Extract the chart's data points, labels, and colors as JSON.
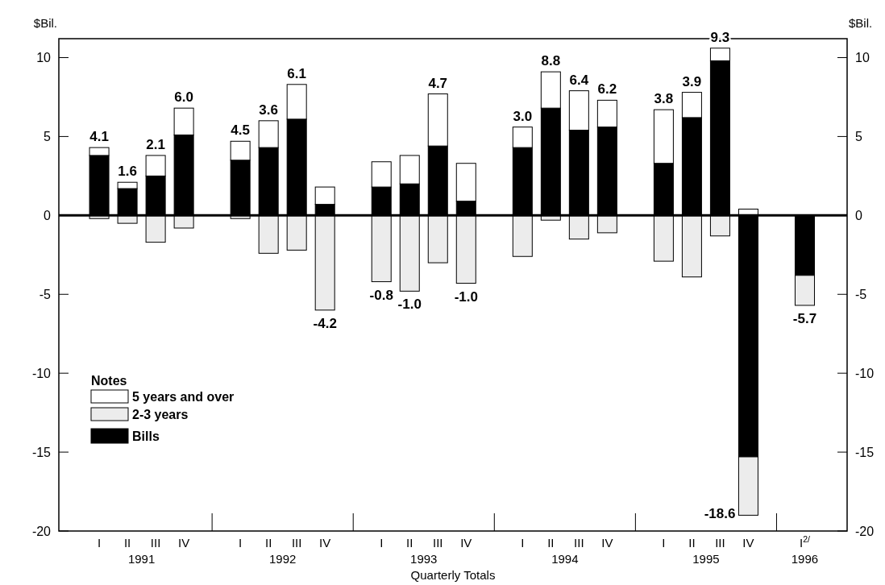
{
  "chart_data": {
    "type": "bar",
    "stacked": true,
    "xlabel": "Quarterly Totals",
    "ylabel": "$Bil.",
    "y2label": "$Bil.",
    "legend_title": "Notes",
    "legend": "bottom left",
    "categories": [
      "I",
      "II",
      "III",
      "IV",
      "I",
      "II",
      "III",
      "IV",
      "I",
      "II",
      "III",
      "IV",
      "I",
      "II",
      "III",
      "IV",
      "I",
      "II",
      "III",
      "IV",
      "I$^{2/}$"
    ],
    "series": [
      {
        "name": "Bills",
        "color": "#000000",
        "values": [
          3.8,
          1.7,
          2.5,
          5.1,
          3.5,
          4.3,
          6.1,
          0.7,
          1.8,
          2.0,
          4.4,
          0.9,
          4.3,
          6.8,
          5.4,
          5.6,
          3.3,
          6.2,
          9.8,
          -15.3,
          -3.8
        ]
      },
      {
        "name": "5 years and over",
        "color": "#ffffff",
        "values": [
          0.5,
          0.4,
          1.3,
          1.7,
          1.2,
          1.7,
          2.2,
          1.1,
          1.6,
          1.8,
          3.3,
          2.4,
          1.3,
          2.3,
          2.5,
          1.7,
          3.4,
          1.6,
          0.8,
          0.4,
          null
        ]
      },
      {
        "name": "2-3 years",
        "color": "#ececec",
        "values": [
          -0.2,
          -0.5,
          -1.7,
          -0.8,
          -0.2,
          -2.4,
          -2.2,
          -6.0,
          -4.2,
          -4.8,
          -3.0,
          -4.3,
          -2.6,
          -0.3,
          -1.5,
          -1.1,
          -2.9,
          -3.9,
          -1.3,
          -3.7,
          -1.9
        ]
      }
    ],
    "totals": [
      "4.1",
      "1.6",
      "2.1",
      "6.0",
      "4.5",
      "3.6",
      "6.1",
      "-4.2",
      "-0.8",
      "-1.0",
      "4.7",
      "-1.0",
      "3.0",
      "8.8",
      "6.4",
      "6.2",
      "3.8",
      "3.9",
      "9.3",
      "-18.6",
      "-5.7"
    ],
    "ylim": [
      -20,
      11.2
    ],
    "yticks": [
      -20,
      -15,
      -10,
      -5,
      0,
      5,
      10
    ],
    "y2lim": [
      -20,
      11.2
    ],
    "y2ticks": [
      -20,
      -15,
      -10,
      -5,
      0,
      5,
      10
    ],
    "annotations": [
      "1991",
      "1992",
      "1993",
      "1994",
      "1995",
      "1996"
    ]
  }
}
